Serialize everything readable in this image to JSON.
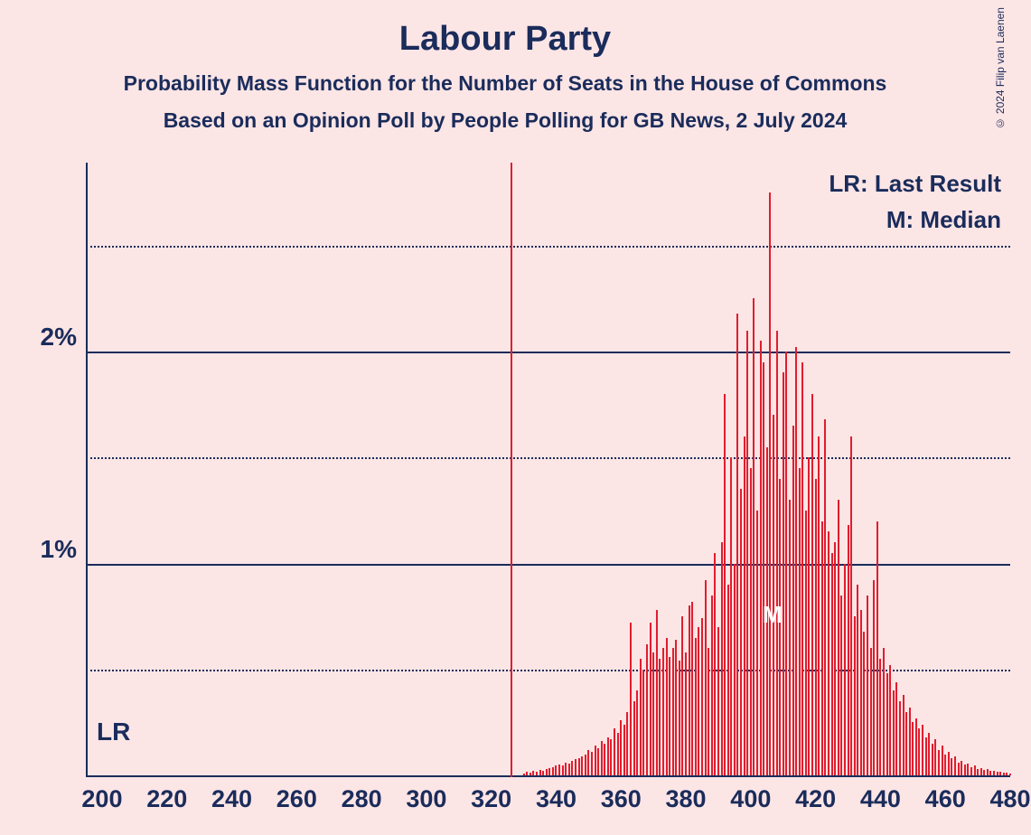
{
  "title": "Labour Party",
  "subtitle1": "Probability Mass Function for the Number of Seats in the House of Commons",
  "subtitle2": "Based on an Opinion Poll by People Polling for GB News, 2 July 2024",
  "copyright": "© 2024 Filip van Laenen",
  "legend": {
    "lr": "LR: Last Result",
    "m": "M: Median"
  },
  "lr_label": "LR",
  "m_label": "M",
  "chart": {
    "type": "bar",
    "bar_color": "#e11d2e",
    "axis_color": "#1a2c5b",
    "background_color": "#fce5e5",
    "text_color": "#1a2c5b",
    "x_min": 195,
    "x_max": 480,
    "x_ticks": [
      200,
      220,
      240,
      260,
      280,
      300,
      320,
      340,
      360,
      380,
      400,
      420,
      440,
      460,
      480
    ],
    "y_min": 0,
    "y_max": 2.9,
    "y_major": [
      1,
      2
    ],
    "y_minor": [
      0.5,
      1.5,
      2.5
    ],
    "y_labels": {
      "1": "1%",
      "2": "2%"
    },
    "lr_x": 326,
    "median_x": 407,
    "bars": [
      [
        330,
        0.01
      ],
      [
        331,
        0.015
      ],
      [
        332,
        0.012
      ],
      [
        333,
        0.02
      ],
      [
        334,
        0.018
      ],
      [
        335,
        0.025
      ],
      [
        336,
        0.022
      ],
      [
        337,
        0.03
      ],
      [
        338,
        0.035
      ],
      [
        339,
        0.04
      ],
      [
        340,
        0.045
      ],
      [
        341,
        0.05
      ],
      [
        342,
        0.048
      ],
      [
        343,
        0.06
      ],
      [
        344,
        0.055
      ],
      [
        345,
        0.07
      ],
      [
        346,
        0.075
      ],
      [
        347,
        0.08
      ],
      [
        348,
        0.09
      ],
      [
        349,
        0.1
      ],
      [
        350,
        0.12
      ],
      [
        351,
        0.11
      ],
      [
        352,
        0.14
      ],
      [
        353,
        0.13
      ],
      [
        354,
        0.16
      ],
      [
        355,
        0.15
      ],
      [
        356,
        0.18
      ],
      [
        357,
        0.17
      ],
      [
        358,
        0.22
      ],
      [
        359,
        0.2
      ],
      [
        360,
        0.26
      ],
      [
        361,
        0.24
      ],
      [
        362,
        0.3
      ],
      [
        363,
        0.72
      ],
      [
        364,
        0.35
      ],
      [
        365,
        0.4
      ],
      [
        366,
        0.55
      ],
      [
        367,
        0.5
      ],
      [
        368,
        0.62
      ],
      [
        369,
        0.72
      ],
      [
        370,
        0.58
      ],
      [
        371,
        0.78
      ],
      [
        372,
        0.55
      ],
      [
        373,
        0.6
      ],
      [
        374,
        0.65
      ],
      [
        375,
        0.56
      ],
      [
        376,
        0.6
      ],
      [
        377,
        0.64
      ],
      [
        378,
        0.54
      ],
      [
        379,
        0.75
      ],
      [
        380,
        0.58
      ],
      [
        381,
        0.8
      ],
      [
        382,
        0.82
      ],
      [
        383,
        0.65
      ],
      [
        384,
        0.7
      ],
      [
        385,
        0.74
      ],
      [
        386,
        0.92
      ],
      [
        387,
        0.6
      ],
      [
        388,
        0.85
      ],
      [
        389,
        1.05
      ],
      [
        390,
        0.7
      ],
      [
        391,
        1.1
      ],
      [
        392,
        1.8
      ],
      [
        393,
        0.9
      ],
      [
        394,
        1.5
      ],
      [
        395,
        1.0
      ],
      [
        396,
        2.18
      ],
      [
        397,
        1.35
      ],
      [
        398,
        1.6
      ],
      [
        399,
        2.1
      ],
      [
        400,
        1.45
      ],
      [
        401,
        2.25
      ],
      [
        402,
        1.25
      ],
      [
        403,
        2.05
      ],
      [
        404,
        1.95
      ],
      [
        405,
        1.55
      ],
      [
        406,
        2.75
      ],
      [
        407,
        1.7
      ],
      [
        408,
        2.1
      ],
      [
        409,
        1.4
      ],
      [
        410,
        1.9
      ],
      [
        411,
        2.0
      ],
      [
        412,
        1.3
      ],
      [
        413,
        1.65
      ],
      [
        414,
        2.02
      ],
      [
        415,
        1.45
      ],
      [
        416,
        1.95
      ],
      [
        417,
        1.25
      ],
      [
        418,
        1.5
      ],
      [
        419,
        1.8
      ],
      [
        420,
        1.4
      ],
      [
        421,
        1.6
      ],
      [
        422,
        1.2
      ],
      [
        423,
        1.68
      ],
      [
        424,
        1.15
      ],
      [
        425,
        1.05
      ],
      [
        426,
        1.1
      ],
      [
        427,
        1.3
      ],
      [
        428,
        0.85
      ],
      [
        429,
        1.0
      ],
      [
        430,
        1.18
      ],
      [
        431,
        1.6
      ],
      [
        432,
        0.75
      ],
      [
        433,
        0.9
      ],
      [
        434,
        0.78
      ],
      [
        435,
        0.68
      ],
      [
        436,
        0.85
      ],
      [
        437,
        0.6
      ],
      [
        438,
        0.92
      ],
      [
        439,
        1.2
      ],
      [
        440,
        0.55
      ],
      [
        441,
        0.6
      ],
      [
        442,
        0.48
      ],
      [
        443,
        0.52
      ],
      [
        444,
        0.4
      ],
      [
        445,
        0.44
      ],
      [
        446,
        0.35
      ],
      [
        447,
        0.38
      ],
      [
        448,
        0.3
      ],
      [
        449,
        0.32
      ],
      [
        450,
        0.25
      ],
      [
        451,
        0.27
      ],
      [
        452,
        0.22
      ],
      [
        453,
        0.24
      ],
      [
        454,
        0.18
      ],
      [
        455,
        0.2
      ],
      [
        456,
        0.15
      ],
      [
        457,
        0.17
      ],
      [
        458,
        0.12
      ],
      [
        459,
        0.14
      ],
      [
        460,
        0.1
      ],
      [
        461,
        0.11
      ],
      [
        462,
        0.08
      ],
      [
        463,
        0.09
      ],
      [
        464,
        0.06
      ],
      [
        465,
        0.07
      ],
      [
        466,
        0.05
      ],
      [
        467,
        0.055
      ],
      [
        468,
        0.04
      ],
      [
        469,
        0.045
      ],
      [
        470,
        0.03
      ],
      [
        471,
        0.035
      ],
      [
        472,
        0.025
      ],
      [
        473,
        0.028
      ],
      [
        474,
        0.02
      ],
      [
        475,
        0.022
      ],
      [
        476,
        0.015
      ],
      [
        477,
        0.017
      ],
      [
        478,
        0.012
      ],
      [
        479,
        0.013
      ],
      [
        480,
        0.01
      ]
    ]
  }
}
